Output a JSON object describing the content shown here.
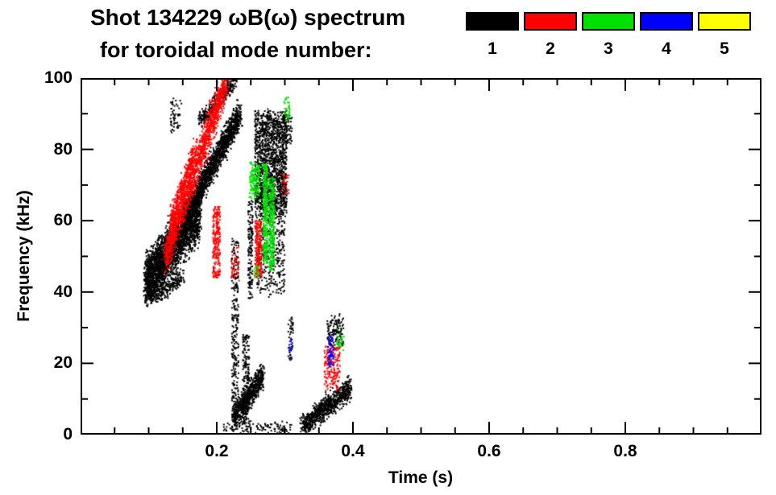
{
  "header": {
    "title": "Shot 134229 ωB(ω) spectrum",
    "subtitle": "for toroidal mode number:"
  },
  "legend": {
    "modes": [
      {
        "label": "1",
        "color": "#000000"
      },
      {
        "label": "2",
        "color": "#ff0000"
      },
      {
        "label": "3",
        "color": "#00e000"
      },
      {
        "label": "4",
        "color": "#0000ff"
      },
      {
        "label": "5",
        "color": "#ffff00"
      }
    ]
  },
  "chart_data": {
    "type": "scatter",
    "title": "Shot 134229 ωB(ω) spectrum for toroidal mode number: 1 2 3 4 5",
    "xlabel": "Time (s)",
    "ylabel": "Frequency (kHz)",
    "xlim": [
      0,
      1.0
    ],
    "ylim": [
      0,
      100
    ],
    "xticks": [
      0.2,
      0.4,
      0.6,
      0.8
    ],
    "yticks": [
      0,
      20,
      40,
      60,
      80,
      100
    ],
    "x_minor_step": 0.05,
    "y_minor_step": 10,
    "grid": false,
    "legend_position": "top-right",
    "background": "#ffffff",
    "axis_color": "#000000",
    "point_size": 2,
    "series": [
      {
        "name": "toroidal mode n=1",
        "legend": "1",
        "color": "#000000",
        "clusters": [
          {
            "type": "band",
            "t": [
              0.095,
              0.175
            ],
            "f": [
              43,
              62
            ],
            "spread": 7,
            "n": 2600
          },
          {
            "type": "band",
            "t": [
              0.1,
              0.15
            ],
            "f": [
              38,
              44
            ],
            "spread": 2.5,
            "n": 250
          },
          {
            "type": "band",
            "t": [
              0.15,
              0.235
            ],
            "f": [
              60,
              90
            ],
            "spread": 4,
            "n": 1800
          },
          {
            "type": "band",
            "t": [
              0.175,
              0.228
            ],
            "f": [
              88,
              99
            ],
            "spread": 2.5,
            "n": 320
          },
          {
            "type": "blob",
            "t": [
              0.256,
              0.303
            ],
            "f": [
              62,
              90
            ],
            "spread": 2,
            "n": 1500
          },
          {
            "type": "blob",
            "t": [
              0.258,
              0.3
            ],
            "f": [
              40,
              62
            ],
            "spread": 2,
            "n": 330
          },
          {
            "type": "streak",
            "t": [
              0.222,
              0.232
            ],
            "f": [
              6,
              55
            ],
            "n": 260
          },
          {
            "type": "streak",
            "t": [
              0.238,
              0.248
            ],
            "f": [
              3,
              28
            ],
            "n": 200
          },
          {
            "type": "band",
            "t": [
              0.224,
              0.268
            ],
            "f": [
              4,
              17
            ],
            "spread": 3.5,
            "n": 650
          },
          {
            "type": "band",
            "t": [
              0.325,
              0.396
            ],
            "f": [
              2,
              13
            ],
            "spread": 3,
            "n": 850
          },
          {
            "type": "blob",
            "t": [
              0.362,
              0.386
            ],
            "f": [
              24,
              33
            ],
            "spread": 1.5,
            "n": 130
          },
          {
            "type": "blob",
            "t": [
              0.297,
              0.311
            ],
            "f": [
              82,
              90
            ],
            "spread": 1.5,
            "n": 60
          },
          {
            "type": "blob",
            "t": [
              0.132,
              0.149
            ],
            "f": [
              86,
              94
            ],
            "spread": 1.5,
            "n": 55
          },
          {
            "type": "streak",
            "t": [
              0.246,
              0.253
            ],
            "f": [
              38,
              66
            ],
            "n": 140
          },
          {
            "type": "blob",
            "t": [
              0.21,
              0.31
            ],
            "f": [
              0.5,
              3
            ],
            "spread": 1,
            "n": 110
          },
          {
            "type": "streak",
            "t": [
              0.305,
              0.313
            ],
            "f": [
              20,
              33
            ],
            "n": 45
          }
        ]
      },
      {
        "name": "toroidal mode n=2",
        "legend": "2",
        "color": "#ff0000",
        "clusters": [
          {
            "type": "band",
            "t": [
              0.125,
              0.215
            ],
            "f": [
              50,
              100
            ],
            "spread": 5,
            "n": 1500
          },
          {
            "type": "band",
            "t": [
              0.133,
              0.168
            ],
            "f": [
              60,
              80
            ],
            "spread": 3,
            "n": 320
          },
          {
            "type": "streak",
            "t": [
              0.194,
              0.205
            ],
            "f": [
              44,
              64
            ],
            "n": 240
          },
          {
            "type": "streak",
            "t": [
              0.256,
              0.266
            ],
            "f": [
              44,
              60
            ],
            "n": 200
          },
          {
            "type": "blob",
            "t": [
              0.358,
              0.381
            ],
            "f": [
              13,
              25
            ],
            "spread": 2,
            "n": 170
          },
          {
            "type": "blob",
            "t": [
              0.296,
              0.306
            ],
            "f": [
              67,
              73
            ],
            "spread": 1,
            "n": 25
          },
          {
            "type": "blob",
            "t": [
              0.221,
              0.233
            ],
            "f": [
              44,
              52
            ],
            "spread": 1.5,
            "n": 45
          }
        ]
      },
      {
        "name": "toroidal mode n=3",
        "legend": "3",
        "color": "#00e000",
        "clusters": [
          {
            "type": "streak",
            "t": [
              0.268,
              0.275
            ],
            "f": [
              48,
              76
            ],
            "n": 300
          },
          {
            "type": "streak",
            "t": [
              0.277,
              0.285
            ],
            "f": [
              46,
              72
            ],
            "n": 300
          },
          {
            "type": "blob",
            "t": [
              0.248,
              0.263
            ],
            "f": [
              67,
              76
            ],
            "spread": 1.5,
            "n": 150
          },
          {
            "type": "blob",
            "t": [
              0.299,
              0.308
            ],
            "f": [
              88,
              94
            ],
            "spread": 1.5,
            "n": 35
          },
          {
            "type": "blob",
            "t": [
              0.376,
              0.387
            ],
            "f": [
              24,
              29
            ],
            "spread": 1,
            "n": 25
          },
          {
            "type": "blob",
            "t": [
              0.255,
              0.263
            ],
            "f": [
              44,
              48
            ],
            "spread": 1,
            "n": 18
          }
        ]
      },
      {
        "name": "toroidal mode n=4",
        "legend": "4",
        "color": "#0000ff",
        "clusters": [
          {
            "type": "streak",
            "t": [
              0.364,
              0.372
            ],
            "f": [
              19,
              28
            ],
            "n": 55
          },
          {
            "type": "blob",
            "t": [
              0.306,
              0.313
            ],
            "f": [
              22,
              27
            ],
            "spread": 1,
            "n": 12
          }
        ]
      },
      {
        "name": "toroidal mode n=5",
        "legend": "5",
        "color": "#ffff00",
        "clusters": []
      }
    ]
  }
}
